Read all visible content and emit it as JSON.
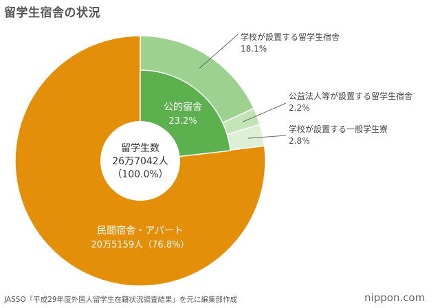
{
  "title": "留学生宿舎の状況",
  "source": "JASSO「平成29年度外国人留学生在籍状況調査結果」を元に編集部作成",
  "brand": "nippon.com",
  "center": {
    "label": "留学生数",
    "count": "26万7042人",
    "percent": "（100.0%）"
  },
  "chart_data": {
    "type": "pie",
    "title": "留学生宿舎の状況",
    "total": {
      "label": "留学生数",
      "value": 267042,
      "unit": "人",
      "percent": 100.0
    },
    "slices": [
      {
        "name": "公的宿舎",
        "percent": 23.2,
        "value_label": "23.2%",
        "color": "#5db04e",
        "group": "公的宿舎",
        "label_style": "inside"
      },
      {
        "name": "学校が設置する留学生宿舎",
        "percent": 18.1,
        "value_label": "18.1%",
        "color": "#9dd18f",
        "group": "公的宿舎",
        "label_style": "callout"
      },
      {
        "name": "公益法人等が設置する留学生宿舎",
        "percent": 2.2,
        "value_label": "2.2%",
        "color": "#c2e4b7",
        "group": "公的宿舎",
        "label_style": "callout"
      },
      {
        "name": "学校が設置する一般学生寮",
        "percent": 2.8,
        "value_label": "2.8%",
        "color": "#ddf0d5",
        "group": "公的宿舎",
        "label_style": "callout"
      },
      {
        "name": "民間宿舎・アパート",
        "percent": 76.8,
        "value_label": "20万5159人（76.8%）",
        "value": 205159,
        "color": "#e38f0a",
        "group": "民間宿舎・アパート",
        "label_style": "inside"
      }
    ]
  }
}
